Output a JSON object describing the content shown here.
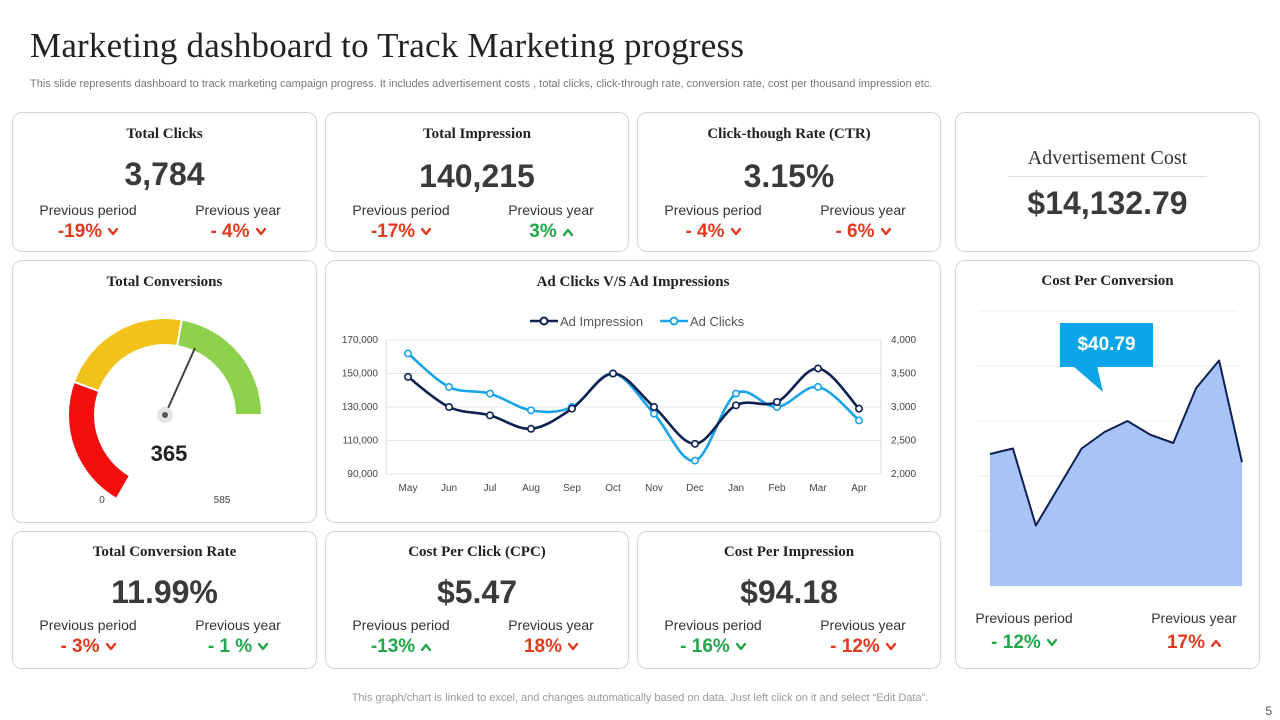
{
  "page": {
    "title": "Marketing dashboard to Track Marketing progress",
    "subtitle": "This slide represents  dashboard to track marketing campaign progress. It includes advertisement costs , total clicks, click-through rate, conversion rate, cost per thousand impression etc.",
    "footer": "This graph/chart is linked to excel,  and changes automatically based on data. Just left click on it and select “Edit Data”.",
    "page_number": "5"
  },
  "colors": {
    "red": "#e03a1e",
    "green": "#22a64a",
    "navy": "#0c2150",
    "sky": "#1aa3e8",
    "callout": "#0aa5e8",
    "area": "#a9c2f7"
  },
  "kpis": {
    "total_clicks": {
      "title": "Total Clicks",
      "value": "3,784",
      "prev_period_label": "Previous period",
      "prev_period": "-19%",
      "prev_period_dir": "down",
      "prev_year_label": "Previous year",
      "prev_year": "- 4%",
      "prev_year_dir": "down"
    },
    "total_impression": {
      "title": "Total Impression",
      "value": "140,215",
      "prev_period_label": "Previous period",
      "prev_period": "-17%",
      "prev_period_dir": "down",
      "prev_year_label": "Previous year",
      "prev_year": "3%",
      "prev_year_dir": "up"
    },
    "ctr": {
      "title": "Click-though  Rate (CTR)",
      "value": "3.15%",
      "prev_period_label": "Previous period",
      "prev_period": "- 4%",
      "prev_period_dir": "down",
      "prev_year_label": "Previous year",
      "prev_year": "- 6%",
      "prev_year_dir": "down"
    },
    "ad_cost": {
      "title": "Advertisement  Cost",
      "value": "$14,132.79"
    },
    "conversion_rate": {
      "title": "Total Conversion Rate",
      "value": "11.99%",
      "prev_period_label": "Previous period",
      "prev_period": "- 3%",
      "prev_period_dir": "down",
      "prev_year_label": "Previous year",
      "prev_year": "- 1 %",
      "prev_year_dir": "down"
    },
    "cpc": {
      "title": "Cost Per Click (CPC)",
      "value": "$5.47",
      "prev_period_label": "Previous period",
      "prev_period": "-13%",
      "prev_period_dir": "up",
      "prev_year_label": "Previous year",
      "prev_year": "18%",
      "prev_year_dir": "down"
    },
    "cpi": {
      "title": "Cost Per Impression",
      "value": "$94.18",
      "prev_period_label": "Previous period",
      "prev_period": "- 16%",
      "prev_period_dir": "down",
      "prev_year_label": "Previous year",
      "prev_year": "- 12%",
      "prev_year_dir": "down"
    },
    "cost_per_conversion": {
      "title": "Cost Per Conversion",
      "callout": "$40.79",
      "prev_period_label": "Previous period",
      "prev_period": "- 12%",
      "prev_period_dir": "down",
      "prev_year_label": "Previous year",
      "prev_year": "17%",
      "prev_year_dir": "up"
    }
  },
  "chart_data": [
    {
      "type": "gauge",
      "title": "Total Conversions",
      "value": 365,
      "value_label": "365",
      "min": 0,
      "max": 585,
      "min_label": "0",
      "max_label": "585",
      "bands": [
        {
          "from": 0,
          "to": 195,
          "color": "#f40e0e"
        },
        {
          "from": 195,
          "to": 390,
          "color": "#f0c21a"
        },
        {
          "from": 390,
          "to": 585,
          "color": "#8ed14d"
        }
      ]
    },
    {
      "type": "line",
      "title": "Ad Clicks V/S Ad Impressions",
      "categories": [
        "May",
        "Jun",
        "Jul",
        "Aug",
        "Sep",
        "Oct",
        "Nov",
        "Dec",
        "Jan",
        "Feb",
        "Mar",
        "Apr"
      ],
      "series": [
        {
          "name": "Ad Impression",
          "axis": "left",
          "color": "#0c2150",
          "values": [
            148000,
            130000,
            125000,
            117000,
            129000,
            150000,
            130000,
            108000,
            131000,
            133000,
            153000,
            129000
          ]
        },
        {
          "name": "Ad Clicks",
          "axis": "right",
          "color": "#1aa3e8",
          "values": [
            3800,
            3300,
            3200,
            2950,
            3000,
            3500,
            2900,
            2200,
            3200,
            3000,
            3300,
            2800
          ]
        }
      ],
      "y_left": {
        "min": 90000,
        "max": 170000,
        "ticks": [
          "90,000",
          "110,000",
          "130,000",
          "150,000",
          "170,000"
        ]
      },
      "y_right": {
        "min": 2000,
        "max": 4000,
        "ticks": [
          "2,000",
          "2,500",
          "3,000",
          "3,500",
          "4,000"
        ]
      },
      "legend": "top-center",
      "grid": true
    },
    {
      "type": "area",
      "title": "Cost Per Conversion",
      "values": [
        48,
        50,
        22,
        36,
        50,
        56,
        60,
        55,
        52,
        72,
        82,
        45
      ],
      "ylim": [
        0,
        100
      ],
      "annotation": "$40.79",
      "grid": true
    }
  ]
}
